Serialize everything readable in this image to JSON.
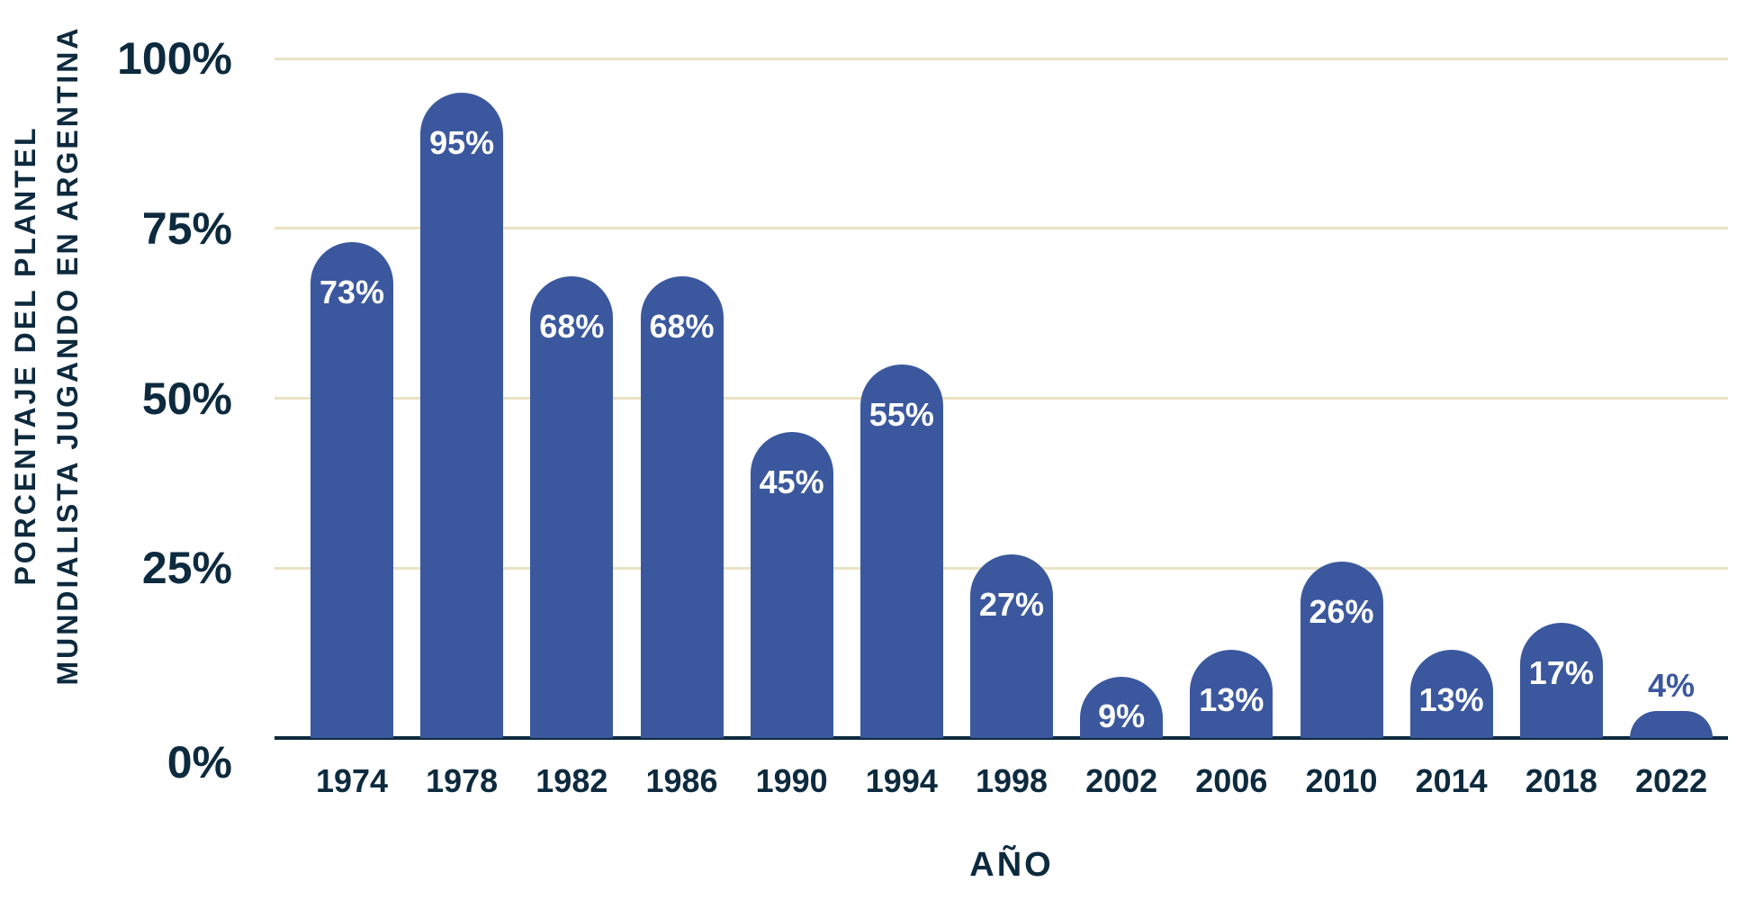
{
  "chart_data": {
    "type": "bar",
    "title": "",
    "xlabel": "AÑO",
    "ylabel": "PORCENTAJE DEL PLANTEL MUNDIALISTA JUGANDO EN ARGENTINA",
    "ylabel_lines": [
      "PORCENTAJE DEL PLANTEL",
      "MUNDIALISTA JUGANDO EN ARGENTINA"
    ],
    "categories": [
      "1974",
      "1978",
      "1982",
      "1986",
      "1990",
      "1994",
      "1998",
      "2002",
      "2006",
      "2010",
      "2014",
      "2018",
      "2022"
    ],
    "values": [
      73,
      95,
      68,
      68,
      45,
      55,
      27,
      9,
      13,
      26,
      13,
      17,
      4
    ],
    "value_labels": [
      "73%",
      "95%",
      "68%",
      "68%",
      "45%",
      "55%",
      "27%",
      "9%",
      "13%",
      "26%",
      "13%",
      "17%",
      "4%"
    ],
    "yticks": [
      {
        "label": "100%",
        "value": 100
      },
      {
        "label": "75%",
        "value": 75
      },
      {
        "label": "50%",
        "value": 50
      },
      {
        "label": "25%",
        "value": 25
      },
      {
        "label": "0%",
        "value": 0
      }
    ],
    "ylim": [
      0,
      100
    ],
    "grid": "horizontal",
    "legend": "none"
  },
  "colors": {
    "bar": "#3b589e",
    "axis_text": "#0d2a3e",
    "gridline": "#eae2c3",
    "axis_line": "#0d2a3e",
    "bar_label_inside": "#ffffff",
    "bar_label_outside": "#3b589e",
    "background": "#ffffff"
  }
}
